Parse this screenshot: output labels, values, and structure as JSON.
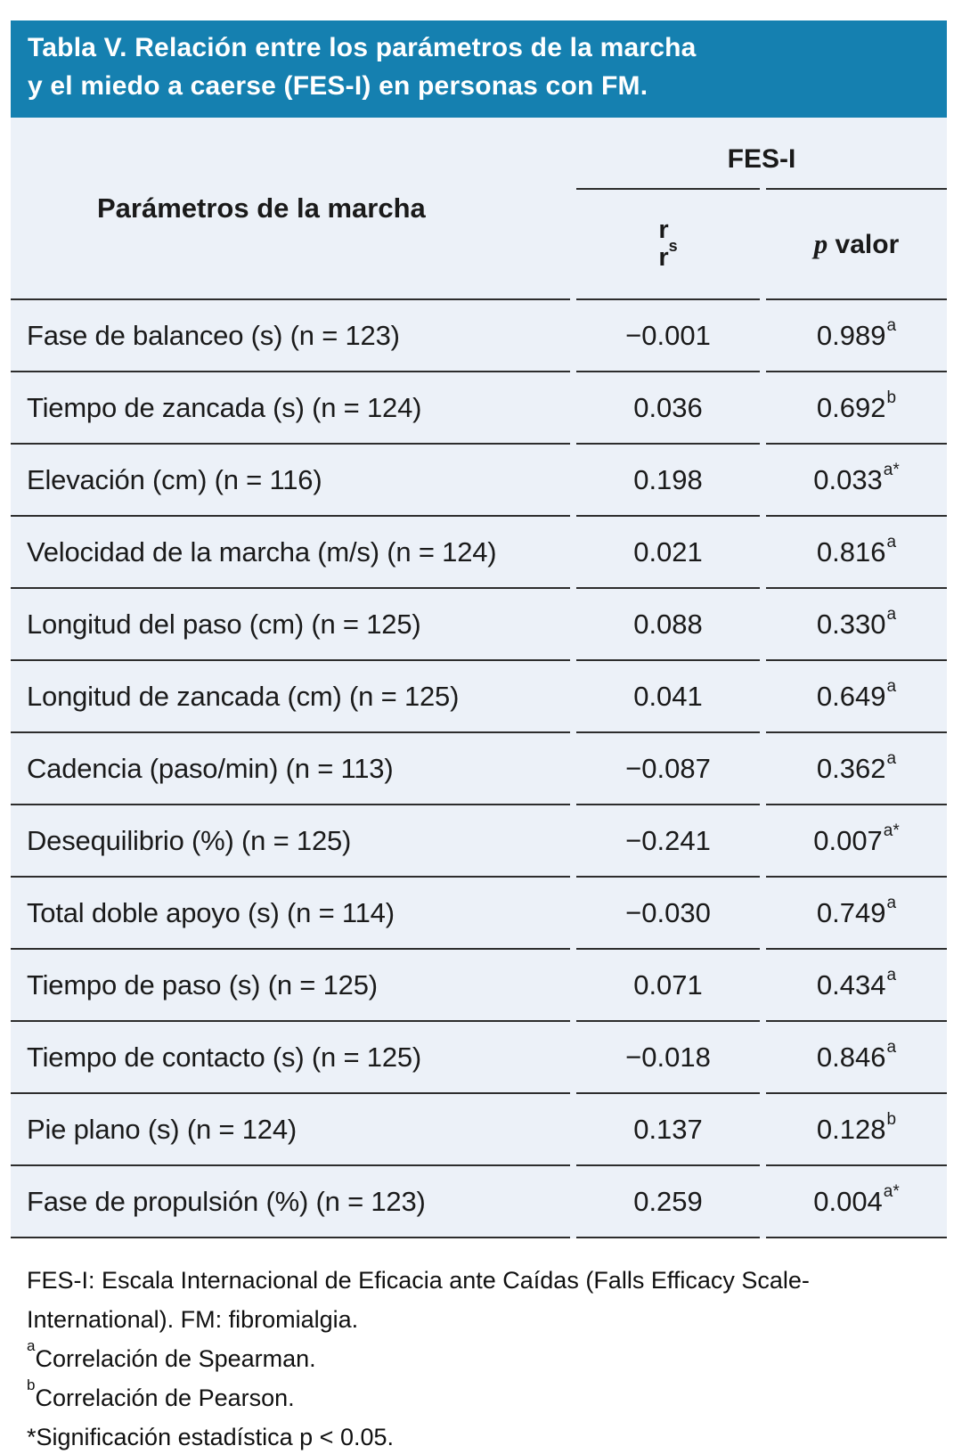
{
  "title": {
    "line1": "Tabla V. Relación entre los parámetros de la marcha",
    "line2": "y el miedo a caerse (FES-I) en personas con FM."
  },
  "table": {
    "param_header": "Parámetros de la marcha",
    "group_header": "FES-I",
    "col_r": {
      "base": "r",
      "sub": "s",
      "second_line": "r"
    },
    "col_p": {
      "italic": "p",
      "rest": " valor"
    },
    "rows": [
      {
        "param": "Fase de balanceo (s) (n = 123)",
        "r": "−0.001",
        "p": "0.989",
        "p_sup": "a"
      },
      {
        "param": "Tiempo de zancada (s) (n = 124)",
        "r": "0.036",
        "p": "0.692",
        "p_sup": "b"
      },
      {
        "param": "Elevación (cm) (n = 116)",
        "r": "0.198",
        "p": "0.033",
        "p_sup": "a*"
      },
      {
        "param": "Velocidad de la marcha (m/s) (n = 124)",
        "r": "0.021",
        "p": "0.816",
        "p_sup": "a"
      },
      {
        "param": "Longitud del paso (cm) (n = 125)",
        "r": "0.088",
        "p": "0.330",
        "p_sup": "a"
      },
      {
        "param": "Longitud de zancada (cm) (n = 125)",
        "r": "0.041",
        "p": "0.649",
        "p_sup": "a"
      },
      {
        "param": "Cadencia (paso/min) (n = 113)",
        "r": "−0.087",
        "p": "0.362",
        "p_sup": "a"
      },
      {
        "param": "Desequilibrio (%) (n = 125)",
        "r": "−0.241",
        "p": "0.007",
        "p_sup": "a*"
      },
      {
        "param": "Total doble apoyo (s) (n = 114)",
        "r": "−0.030",
        "p": "0.749",
        "p_sup": "a"
      },
      {
        "param": "Tiempo de paso (s) (n = 125)",
        "r": "0.071",
        "p": "0.434",
        "p_sup": "a"
      },
      {
        "param": "Tiempo de contacto (s) (n = 125)",
        "r": "−0.018",
        "p": "0.846",
        "p_sup": "a"
      },
      {
        "param": "Pie plano (s) (n = 124)",
        "r": "0.137",
        "p": "0.128",
        "p_sup": "b"
      },
      {
        "param": "Fase de propulsión (%) (n = 123)",
        "r": "0.259",
        "p": "0.004",
        "p_sup": "a*"
      }
    ]
  },
  "footnotes": [
    {
      "sup": "",
      "text": "FES-I: Escala Internacional de Eficacia ante Caídas (Falls Efficacy Scale-"
    },
    {
      "sup": "",
      "text": "International). FM: fibromialgia."
    },
    {
      "sup": "a",
      "text": "Correlación de Spearman."
    },
    {
      "sup": "b",
      "text": "Correlación de Pearson."
    },
    {
      "sup": "",
      "text": "*Significación estadística p < 0.05."
    }
  ],
  "colors": {
    "header_bg": "#1580B0",
    "table_bg": "#ECF1F8",
    "line": "#2D2D2D",
    "title_text": "#FFFFFF",
    "body_text": "#1A1A1A"
  }
}
